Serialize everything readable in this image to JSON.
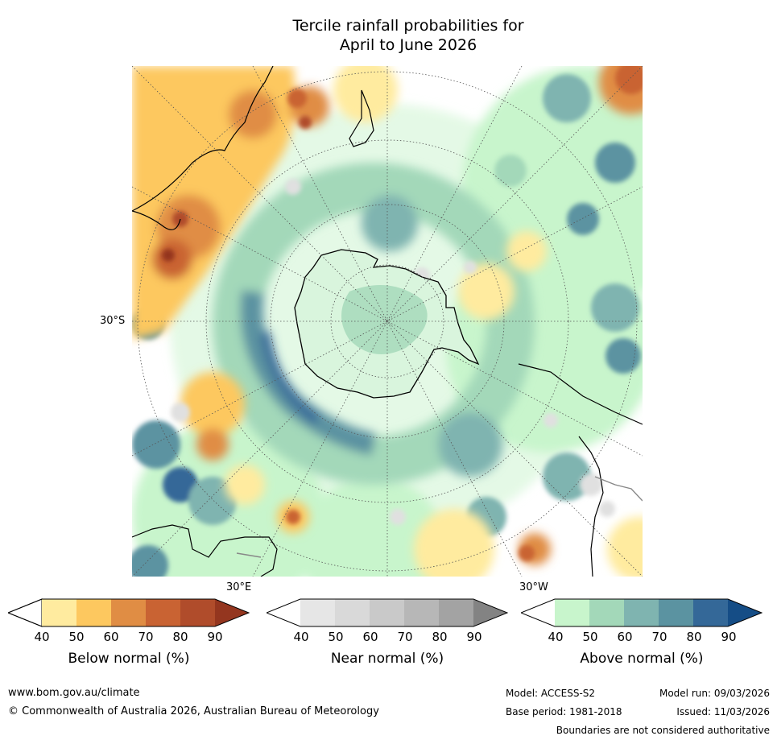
{
  "title": {
    "line1": "Tercile rainfall probabilities for",
    "line2": "April to June 2026"
  },
  "map": {
    "lat_label": "30°S",
    "lon_labels": [
      "30°E",
      "30°W"
    ]
  },
  "legend": {
    "below": {
      "label": "Below normal (%)",
      "ticks": [
        "40",
        "50",
        "60",
        "70",
        "80",
        "90"
      ],
      "colors": [
        "#ffffff",
        "#ffeb9f",
        "#fdc85f",
        "#e08d44",
        "#c96333",
        "#b04c2b",
        "#94361f"
      ]
    },
    "near": {
      "label": "Near normal (%)",
      "ticks": [
        "40",
        "50",
        "60",
        "70",
        "80",
        "90"
      ],
      "colors": [
        "#ffffff",
        "#e6e6e6",
        "#d9d9d9",
        "#c9c9c9",
        "#b7b7b7",
        "#a3a3a3",
        "#838383"
      ]
    },
    "above": {
      "label": "Above normal (%)",
      "ticks": [
        "40",
        "50",
        "60",
        "70",
        "80",
        "90"
      ],
      "colors": [
        "#ffffff",
        "#c8f5cc",
        "#a3d8b9",
        "#7fb4b0",
        "#5b93a1",
        "#346898",
        "#154d86"
      ]
    }
  },
  "footer": {
    "website": "www.bom.gov.au/climate",
    "copyright": "© Commonwealth of Australia 2026, Australian Bureau of Meteorology",
    "model": "Model: ACCESS-S2",
    "base_period": "Base period: 1981-2018",
    "model_run": "Model run: 09/03/2026",
    "issued": "Issued: 11/03/2026",
    "disclaimer": "Boundaries are not considered authoritative"
  }
}
